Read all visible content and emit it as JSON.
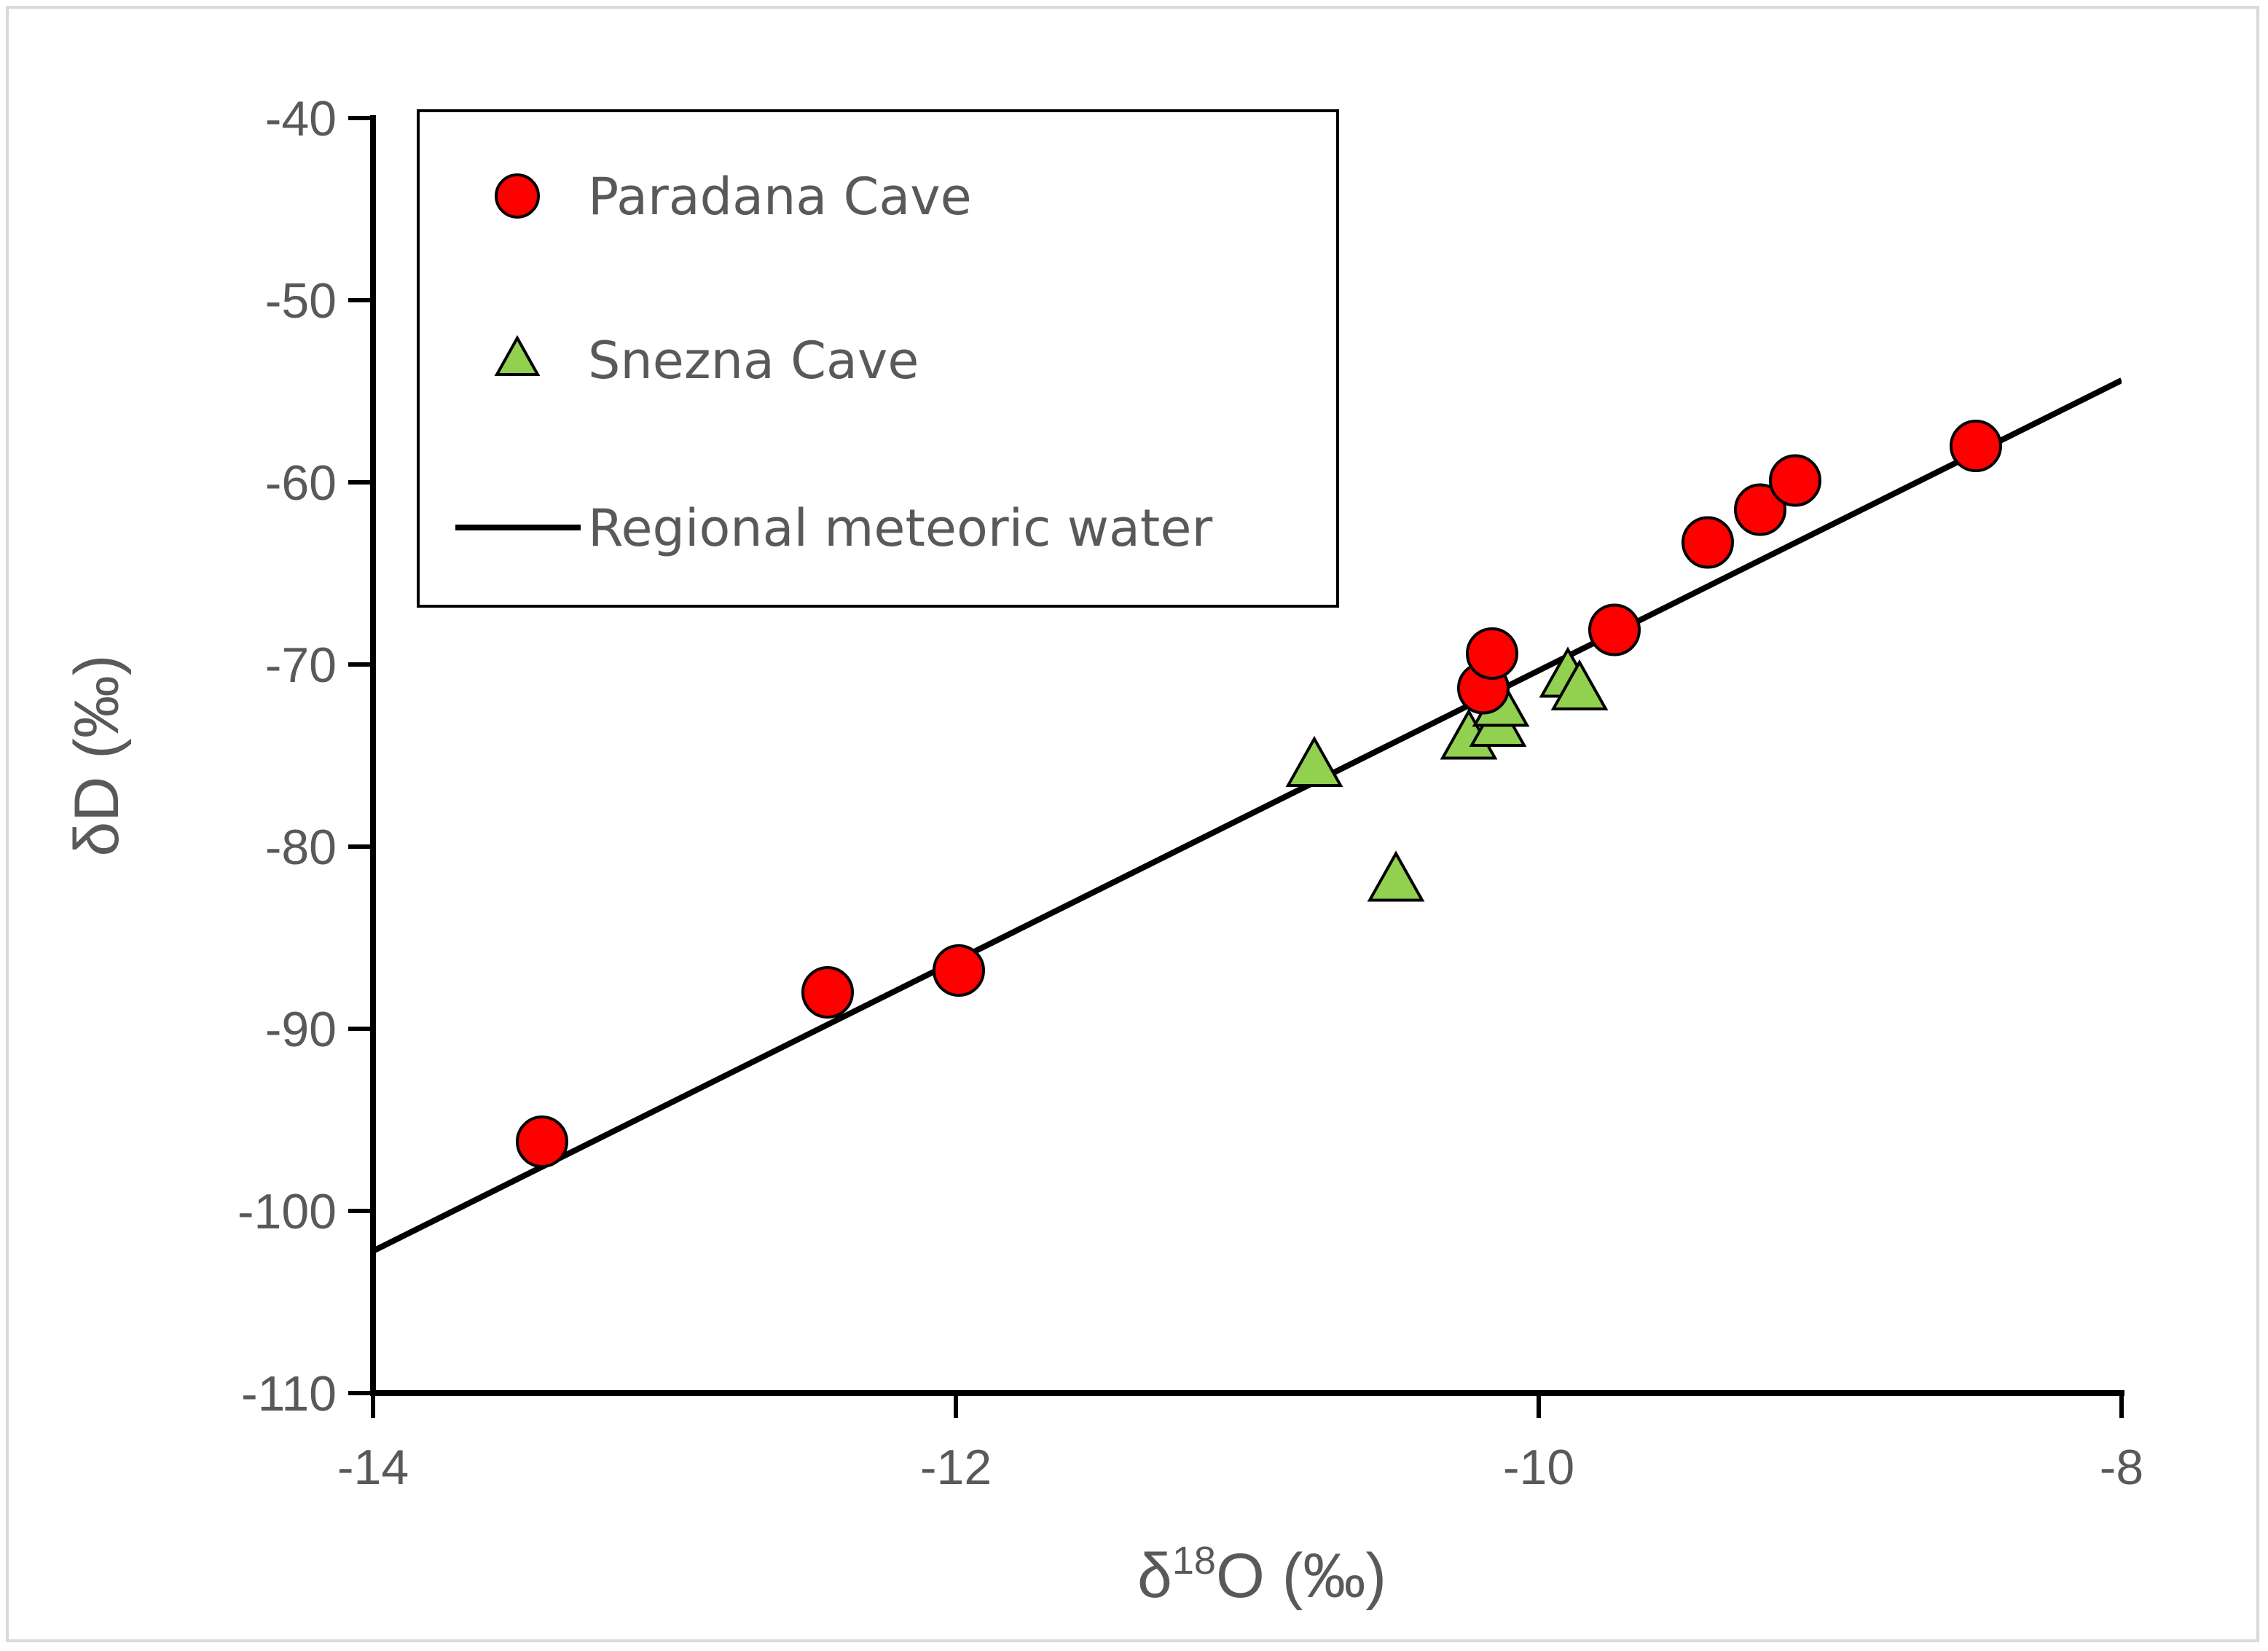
{
  "chart_data": {
    "type": "scatter",
    "title": "",
    "xlabel": "δ18O (‰)",
    "xlabel_parts": {
      "prefix": "δ",
      "sup": "18",
      "suffix": "O (‰)"
    },
    "ylabel": "δD (‰)",
    "xlim": [
      -14,
      -8
    ],
    "ylim": [
      -110,
      -40
    ],
    "xticks": [
      -14,
      -12,
      -10,
      -8
    ],
    "xtick_labels": [
      "-14",
      "-12",
      "-10",
      "-8"
    ],
    "yticks": [
      -40,
      -50,
      -60,
      -70,
      -80,
      -90,
      -100,
      -110
    ],
    "ytick_labels": [
      "-40",
      "-50",
      "-60",
      "-70",
      "-80",
      "-90",
      "-100",
      "-110"
    ],
    "grid": false,
    "legend_position": "top-left",
    "series": [
      {
        "name": "Paradana Cave",
        "marker": "circle",
        "color": "#ff0000",
        "edge_color": "#000000",
        "points": [
          {
            "x": -13.42,
            "y": -96.2
          },
          {
            "x": -12.44,
            "y": -88.0
          },
          {
            "x": -11.99,
            "y": -86.8
          },
          {
            "x": -10.19,
            "y": -71.3
          },
          {
            "x": -10.16,
            "y": -69.4
          },
          {
            "x": -9.74,
            "y": -68.1
          },
          {
            "x": -9.42,
            "y": -63.3
          },
          {
            "x": -9.24,
            "y": -61.5
          },
          {
            "x": -9.12,
            "y": -59.9
          },
          {
            "x": -8.5,
            "y": -58.0
          }
        ]
      },
      {
        "name": "Snezna Cave",
        "marker": "triangle",
        "color": "#92d050",
        "edge_color": "#000000",
        "points": [
          {
            "x": -10.77,
            "y": -75.6
          },
          {
            "x": -10.49,
            "y": -81.9
          },
          {
            "x": -10.24,
            "y": -74.1
          },
          {
            "x": -10.14,
            "y": -73.4
          },
          {
            "x": -10.13,
            "y": -72.3
          },
          {
            "x": -9.9,
            "y": -70.7
          },
          {
            "x": -9.86,
            "y": -71.4
          }
        ]
      },
      {
        "name": "Regional meteoric water",
        "type": "line",
        "color": "#000000",
        "x": [
          -14,
          -8
        ],
        "y": [
          -102.2,
          -54.4
        ]
      }
    ]
  }
}
